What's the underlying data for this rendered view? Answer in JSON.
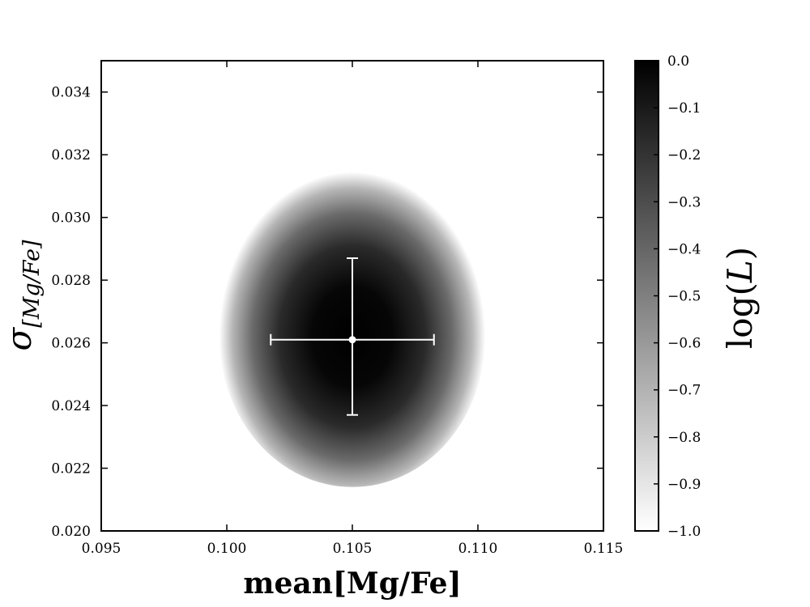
{
  "chart_data": {
    "type": "heatmap",
    "colormap": "grayscale",
    "xlabel": "mean[Mg/Fe]",
    "ylabel_main": "σ",
    "ylabel_sub": "[Mg/Fe]",
    "xlim": [
      0.095,
      0.115
    ],
    "ylim": [
      0.02,
      0.035
    ],
    "x_ticks": [
      "0.095",
      "0.100",
      "0.105",
      "0.110",
      "0.115"
    ],
    "y_ticks": [
      "0.020",
      "0.022",
      "0.024",
      "0.026",
      "0.028",
      "0.030",
      "0.032",
      "0.034"
    ],
    "likelihood": {
      "peak_x": 0.105,
      "peak_y": 0.0262,
      "x_halfwidth": 0.0053,
      "y_halfwidth_up": 0.0057,
      "y_halfwidth_down": 0.0048,
      "min_log_l": -1.0
    },
    "best_fit": {
      "x": 0.105,
      "y": 0.0261,
      "x_err": 0.00325,
      "y_err_up": 0.0026,
      "y_err_down": 0.0024
    },
    "colorbar": {
      "label_main": "log",
      "label_var": "L",
      "range": [
        -1.0,
        0.0
      ],
      "ticks": [
        "0.0",
        "−0.1",
        "−0.2",
        "−0.3",
        "−0.4",
        "−0.5",
        "−0.6",
        "−0.7",
        "−0.8",
        "−0.9",
        "−1.0"
      ],
      "top_color": "#000000",
      "bottom_color": "#ffffff"
    }
  }
}
